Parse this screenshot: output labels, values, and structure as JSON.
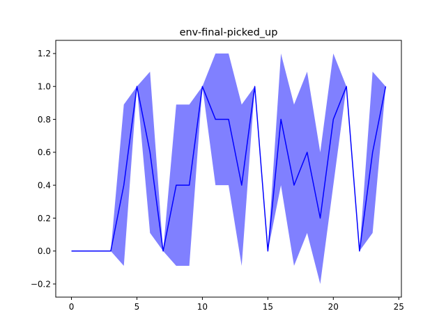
{
  "chart_data": {
    "type": "line",
    "title": "env-final-picked_up",
    "xlabel": "",
    "ylabel": "",
    "xlim": [
      -1.2,
      25.2
    ],
    "ylim": [
      -0.28,
      1.28
    ],
    "grid": false,
    "x_ticks": [
      0,
      5,
      10,
      15,
      20,
      25
    ],
    "x_tick_labels": [
      "0",
      "5",
      "10",
      "15",
      "20",
      "25"
    ],
    "y_ticks": [
      -0.2,
      0.0,
      0.2,
      0.4,
      0.6,
      0.8,
      1.0,
      1.2
    ],
    "y_tick_labels": [
      "−0.2",
      "0.0",
      "0.2",
      "0.4",
      "0.6",
      "0.8",
      "1.0",
      "1.2"
    ],
    "series": [
      {
        "x": [
          0,
          1,
          2,
          3,
          4,
          5,
          6,
          7,
          8,
          9,
          10,
          11,
          12,
          13,
          14,
          15,
          16,
          17,
          18,
          19,
          20,
          21,
          22,
          23,
          24
        ],
        "mean": [
          0,
          0,
          0,
          0,
          0.4,
          1.0,
          0.6,
          0,
          0.4,
          0.4,
          1.0,
          0.8,
          0.8,
          0.4,
          1.0,
          0,
          0.8,
          0.4,
          0.6,
          0.2,
          0.8,
          1.0,
          0,
          0.6,
          1.0
        ],
        "upper": [
          0,
          0,
          0,
          0,
          0.89,
          1.0,
          1.09,
          0,
          0.89,
          0.89,
          1.0,
          1.2,
          1.2,
          0.89,
          1.0,
          0,
          1.2,
          0.89,
          1.09,
          0.6,
          1.2,
          1.0,
          0,
          1.09,
          1.0
        ],
        "lower": [
          0,
          0,
          0,
          0,
          -0.09,
          1.0,
          0.11,
          0,
          -0.09,
          -0.09,
          1.0,
          0.4,
          0.4,
          -0.09,
          1.0,
          0,
          0.4,
          -0.09,
          0.11,
          -0.2,
          0.4,
          1.0,
          0,
          0.11,
          1.0
        ],
        "line_color": "#0000ff",
        "band_color": "#8080ff"
      }
    ]
  }
}
